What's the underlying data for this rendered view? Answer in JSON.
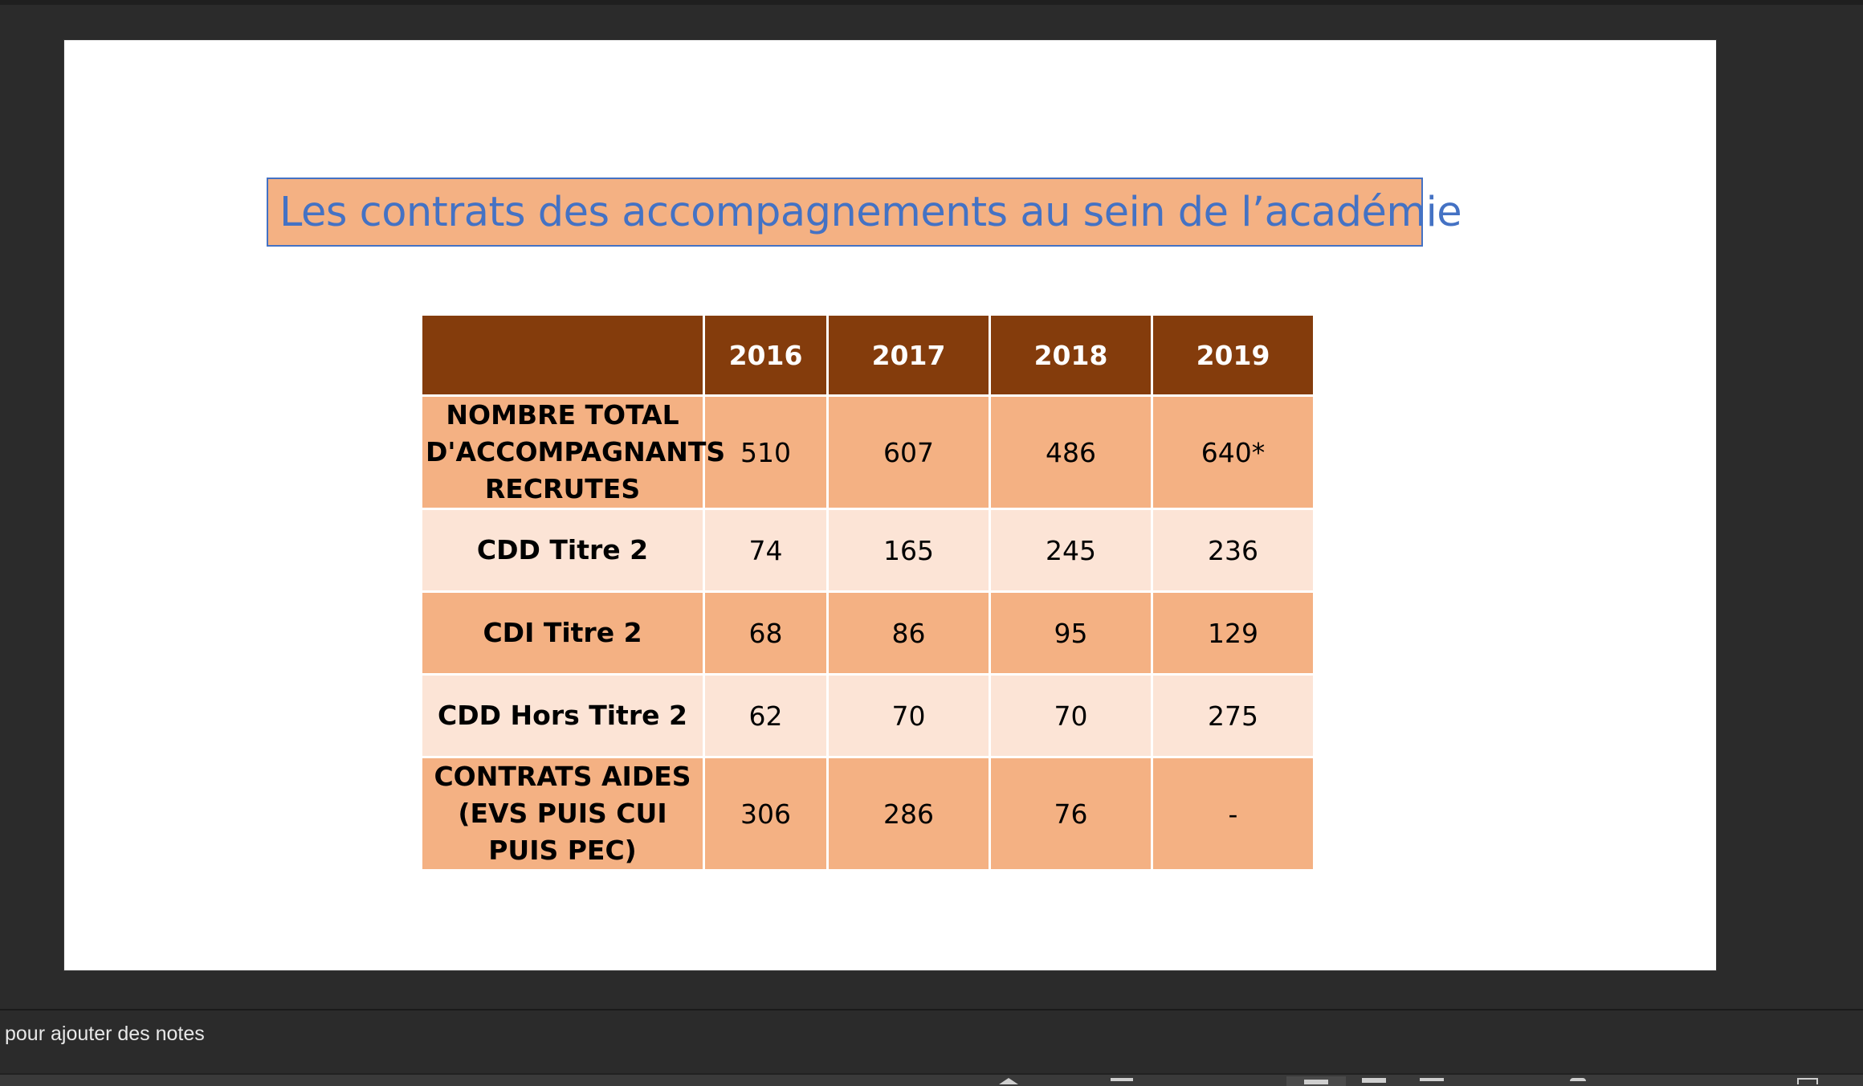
{
  "slide": {
    "title": "Les contrats des accompagnements au sein de l’académie"
  },
  "table": {
    "columns": [
      "",
      "2016",
      "2017",
      "2018",
      "2019"
    ],
    "rows": [
      {
        "label": "NOMBRE TOTAL D'ACCOMPAGNANTS RECRUTES",
        "values": [
          "510",
          "607",
          "486",
          "640*"
        ]
      },
      {
        "label": "CDD Titre 2",
        "values": [
          "74",
          "165",
          "245",
          "236"
        ]
      },
      {
        "label": "CDI Titre 2",
        "values": [
          "68",
          "86",
          "95",
          "129"
        ]
      },
      {
        "label": "CDD Hors Titre 2",
        "values": [
          "62",
          "70",
          "70",
          "275"
        ]
      },
      {
        "label": "CONTRATS AIDES (EVS PUIS CUI PUIS PEC)",
        "values": [
          "306",
          "286",
          "76",
          "-"
        ]
      }
    ]
  },
  "notes": {
    "placeholder": "pour ajouter des notes"
  },
  "colors": {
    "header": "#843c0c",
    "row_dark": "#f4b183",
    "row_light": "#fce4d6",
    "title_text": "#4472c4",
    "title_fill": "#f4b183"
  },
  "status_bar": {
    "icons": [
      "view-up-icon",
      "comments-icon",
      "normal-view-icon",
      "slide-sorter-icon",
      "reading-view-icon",
      "zoom-icon",
      "fit-icon"
    ]
  }
}
